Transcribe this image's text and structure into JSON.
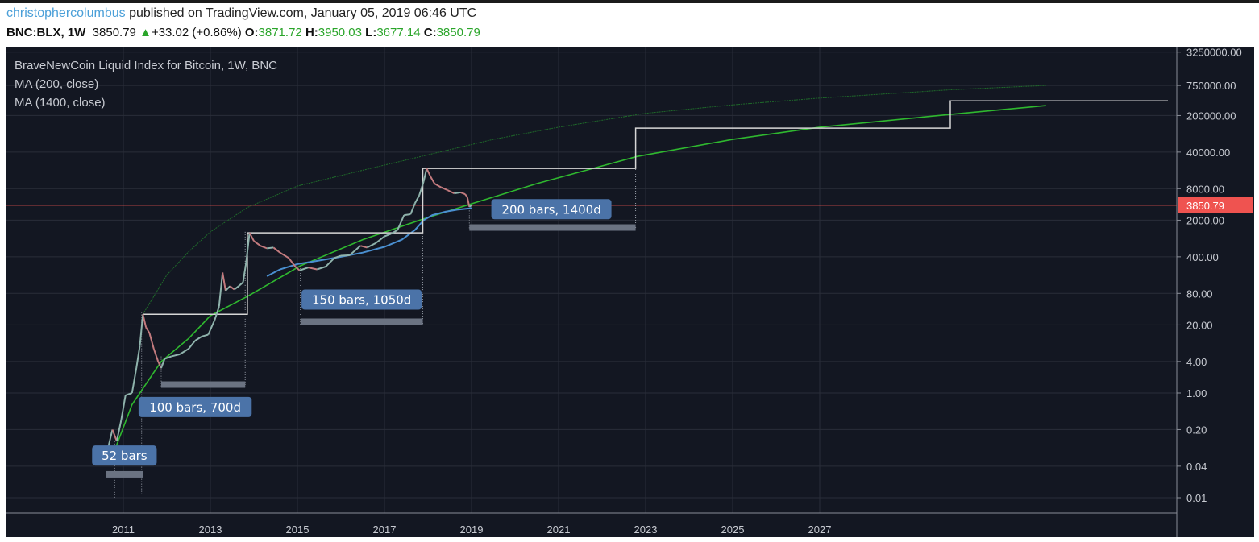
{
  "header": {
    "author": "christophercolumbus",
    "published": "published on TradingView.com, January 05, 2019 06:46 UTC",
    "symbol": "BNC:BLX, 1W",
    "last": "3850.79",
    "change": "+33.02 (+0.86%)",
    "o_label": "O:",
    "o": "3871.72",
    "h_label": "H:",
    "h": "3950.03",
    "l_label": "L:",
    "l": "3677.14",
    "c_label": "C:",
    "c": "3850.79",
    "up_icon": "triangle-up-icon"
  },
  "legend": {
    "title": "BraveNewCoin Liquid Index for Bitcoin, 1W, BNC",
    "ma200": "MA (200, close)",
    "ma1400": "MA (1400, close)"
  },
  "colors": {
    "background": "#131722",
    "grid": "#2a2e39",
    "up": "#8fb3ac",
    "down": "#c27a7e",
    "ma1400": "#2fb82f",
    "ma200": "#4a8fd0",
    "upper_curve": "#1f6b2a",
    "steps": "#d6d6d6",
    "last_price": "#ef5350",
    "label_bg": "#4b73a8",
    "measure_bar": "#6b7382"
  },
  "chart_data": {
    "type": "line",
    "title": "BraveNewCoin Liquid Index for Bitcoin, 1W, BNC",
    "yscale": "log",
    "xlim": [
      2010.1,
      2032.3
    ],
    "ylim": [
      0.008,
      3600000
    ],
    "x_ticks": [
      "2011",
      "2013",
      "2015",
      "2017",
      "2019",
      "2021",
      "2023",
      "2025",
      "2027"
    ],
    "y_ticks": [
      "3250000.00",
      "750000.00",
      "200000.00",
      "40000.00",
      "8000.00",
      "2000.00",
      "400.00",
      "80.00",
      "20.00",
      "4.00",
      "1.00",
      "0.20",
      "0.04",
      "0.01"
    ],
    "y_tick_values": [
      3250000,
      750000,
      200000,
      40000,
      8000,
      2000,
      400,
      80,
      20,
      4,
      1,
      0.2,
      0.04,
      0.01
    ],
    "last_price": {
      "value": 3850.79,
      "label": "3850.79"
    },
    "series": [
      {
        "name": "BLX price",
        "x": [
          2010.6,
          2010.75,
          2010.85,
          2010.95,
          2011.05,
          2011.2,
          2011.3,
          2011.38,
          2011.45,
          2011.52,
          2011.6,
          2011.7,
          2011.8,
          2011.87,
          2011.95,
          2012.1,
          2012.3,
          2012.5,
          2012.65,
          2012.8,
          2012.95,
          2013.1,
          2013.2,
          2013.28,
          2013.35,
          2013.45,
          2013.55,
          2013.65,
          2013.75,
          2013.82,
          2013.9,
          2014.0,
          2014.15,
          2014.3,
          2014.45,
          2014.6,
          2014.8,
          2014.95,
          2015.05,
          2015.25,
          2015.45,
          2015.65,
          2015.85,
          2016.0,
          2016.2,
          2016.45,
          2016.6,
          2016.8,
          2017.0,
          2017.15,
          2017.3,
          2017.45,
          2017.6,
          2017.7,
          2017.8,
          2017.9,
          2017.97,
          2018.05,
          2018.15,
          2018.3,
          2018.45,
          2018.6,
          2018.75,
          2018.85,
          2018.9,
          2018.95,
          2019.0
        ],
        "y": [
          0.06,
          0.2,
          0.12,
          0.3,
          0.9,
          1.0,
          3,
          8,
          32,
          18,
          14,
          7,
          4,
          3,
          4.5,
          5,
          5.5,
          7,
          10,
          12,
          13,
          25,
          45,
          200,
          90,
          110,
          95,
          110,
          130,
          300,
          1150,
          800,
          650,
          580,
          600,
          480,
          380,
          260,
          220,
          250,
          230,
          260,
          380,
          420,
          430,
          650,
          600,
          730,
          980,
          1100,
          1300,
          2500,
          2600,
          4200,
          6000,
          11000,
          19500,
          14000,
          10000,
          8500,
          7500,
          6500,
          6800,
          6300,
          5600,
          3600,
          3850
        ]
      },
      {
        "name": "MA (200, close)",
        "x": [
          2014.3,
          2014.6,
          2015.0,
          2015.5,
          2016.0,
          2016.5,
          2017.0,
          2017.4,
          2017.7,
          2017.9,
          2018.1,
          2018.4,
          2018.7,
          2019.0
        ],
        "y": [
          170,
          230,
          290,
          340,
          400,
          480,
          620,
          850,
          1300,
          2000,
          2500,
          2900,
          3200,
          3400
        ]
      },
      {
        "name": "MA (1400, close)",
        "x": [
          2010.8,
          2011.2,
          2011.87,
          2012.5,
          2013.0,
          2013.85,
          2015.07,
          2016.5,
          2017.88,
          2018.95,
          2020.5,
          2022.8,
          2025.0,
          2027.0,
          2030.0,
          2032.2
        ],
        "y": [
          0.08,
          0.6,
          4,
          11,
          30,
          70,
          270,
          850,
          2100,
          4000,
          10000,
          33000,
          70000,
          120000,
          210000,
          310000
        ]
      },
      {
        "name": "Upper curve",
        "x": [
          2011.45,
          2012.0,
          2012.5,
          2013.0,
          2013.85,
          2015.0,
          2016.5,
          2017.97,
          2019.5,
          2021.0,
          2023.0,
          2025.0,
          2027.0,
          2030.0,
          2032.2
        ],
        "y": [
          32,
          180,
          500,
          1200,
          3500,
          9000,
          18000,
          35000,
          70000,
          120000,
          220000,
          320000,
          430000,
          620000,
          750000
        ]
      },
      {
        "name": "Step projection",
        "x": [
          2011.45,
          2013.85,
          2013.85,
          2017.88,
          2017.88,
          2022.77,
          2022.77,
          2030.0,
          2030.0,
          2035.0
        ],
        "y": [
          32,
          32,
          1150,
          1150,
          19500,
          19500,
          115000,
          115000,
          380000,
          380000
        ]
      }
    ],
    "annotations": [
      {
        "label": "52 bars",
        "x_start": 2010.6,
        "x_end": 2011.45,
        "label_price": 0.065,
        "bar_price": 0.028
      },
      {
        "label": "100 bars, 700d",
        "x_start": 2011.87,
        "x_end": 2013.8,
        "label_price": 0.55,
        "bar_price": 1.45
      },
      {
        "label": "150 bars, 1050d",
        "x_start": 2015.07,
        "x_end": 2017.88,
        "label_price": 62,
        "bar_price": 23
      },
      {
        "label": "200 bars, 1400d",
        "x_start": 2018.95,
        "x_end": 2022.77,
        "label_price": 3300,
        "bar_price": 1450
      }
    ],
    "guides": [
      {
        "x": 2010.8,
        "from": 0.01,
        "to": 0.12
      },
      {
        "x": 2011.42,
        "from": 0.012,
        "to": 35
      },
      {
        "x": 2011.87,
        "from": 1.3,
        "to": 5
      },
      {
        "x": 2013.8,
        "from": 1.3,
        "to": 1200
      },
      {
        "x": 2015.07,
        "from": 20,
        "to": 300
      },
      {
        "x": 2017.88,
        "from": 20,
        "to": 19500
      },
      {
        "x": 2018.95,
        "from": 1300,
        "to": 3800
      },
      {
        "x": 2022.77,
        "from": 1300,
        "to": 115000
      }
    ]
  }
}
